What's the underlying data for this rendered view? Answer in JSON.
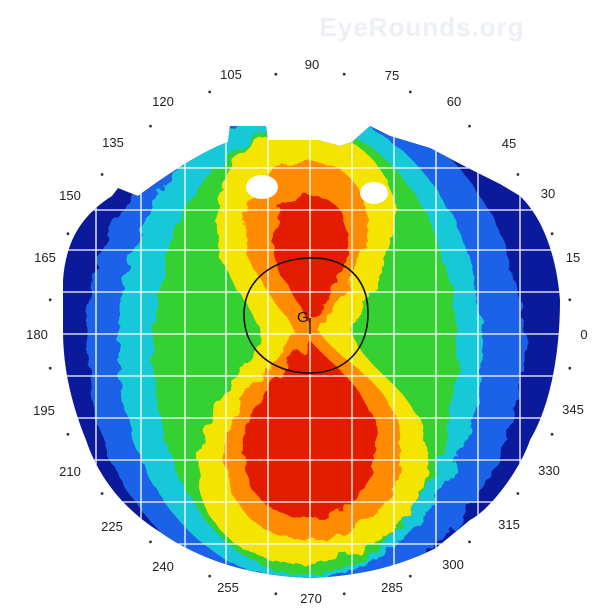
{
  "watermark": "EyeRounds.org",
  "center_marker": "G",
  "degree_labels": [
    "0",
    "15",
    "30",
    "45",
    "60",
    "75",
    "90",
    "105",
    "120",
    "135",
    "150",
    "165",
    "180",
    "195",
    "210",
    "225",
    "240",
    "255",
    "270",
    "285",
    "300",
    "315",
    "330",
    "345"
  ],
  "colors": {
    "steep": "#e31a00",
    "orange": "#ff8c00",
    "yellow": "#f5e400",
    "green": "#35d033",
    "cyan": "#19c8d8",
    "blue": "#1a62e8",
    "flat": "#0a1a9a",
    "white_patch": "#ffffff"
  }
}
